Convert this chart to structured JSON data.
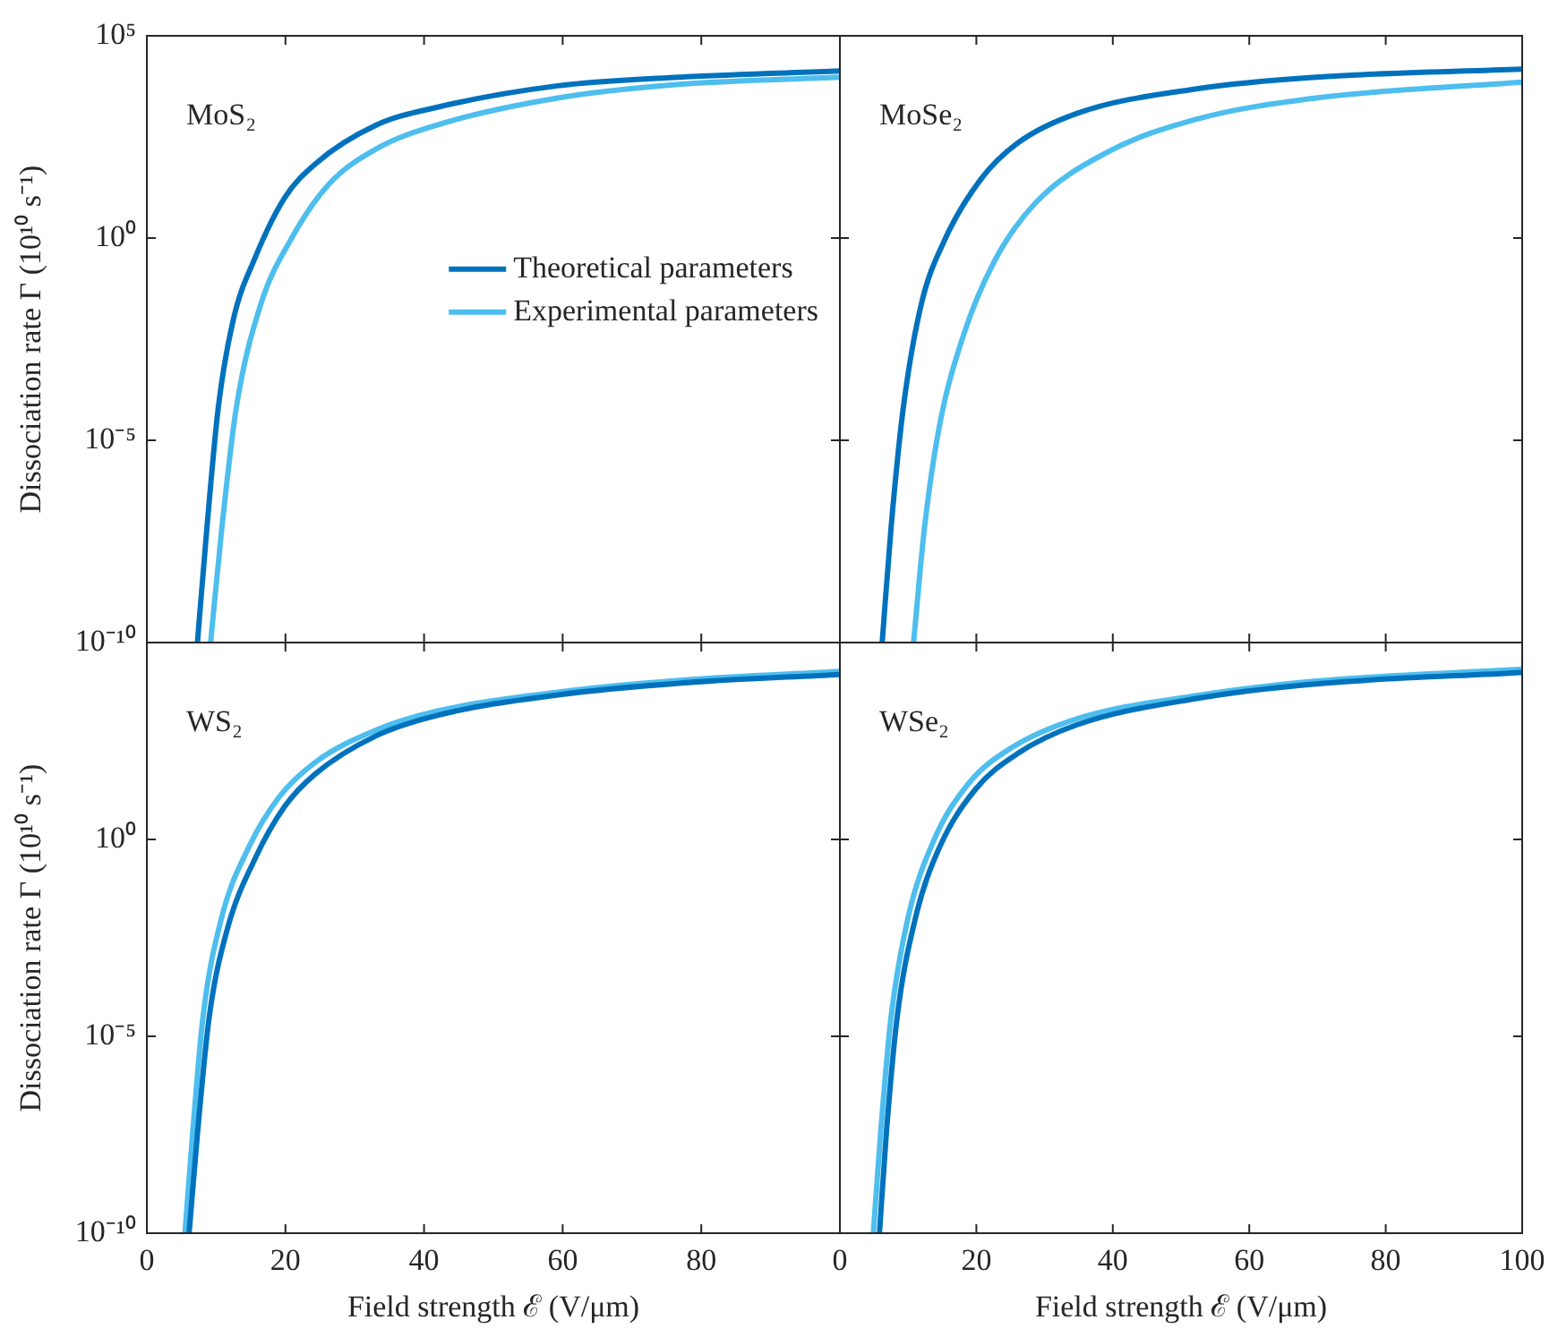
{
  "chart_data": [
    {
      "type": "line",
      "ylabel": "Dissociation rate Γ (10¹⁰ s⁻¹)",
      "annotations": [
        "MoS₂"
      ],
      "log": "y",
      "legend": "right",
      "tick_labels": "y",
      "xlim": [
        0,
        100
      ],
      "xticks": [
        0,
        20,
        40,
        60,
        80,
        100
      ],
      "ylim": [
        1e-10,
        100000
      ],
      "yticks": [
        {
          "value": 1e-10,
          "label": "10⁻¹⁰"
        },
        {
          "value": 1e-05,
          "label": "10⁻⁵"
        },
        {
          "value": 1,
          "label": "10⁰"
        },
        {
          "value": 100000,
          "label": "10⁵"
        }
      ],
      "series": [
        {
          "name": "Theoretical parameters",
          "color": "#0072bd",
          "x": [
            7.3,
            8.6,
            10.3,
            12.5,
            15.6,
            19.9,
            24.3,
            33.1,
            41.8,
            59.3,
            76.8,
            100
          ],
          "values": [
            1e-10,
            5e-08,
            6.3e-05,
            0.01,
            0.32,
            10,
            68,
            620,
            1700,
            5800,
            9500,
            13500
          ]
        },
        {
          "name": "Experimental parameters",
          "color": "#4dbeee",
          "x": [
            9.2,
            10.8,
            12.9,
            16.4,
            20.8,
            26.1,
            33.1,
            41.8,
            59.3,
            76.8,
            100
          ],
          "values": [
            1e-10,
            6.3e-08,
            6.3e-05,
            0.022,
            0.93,
            20,
            160,
            620,
            2900,
            6300,
            9500
          ]
        }
      ]
    },
    {
      "type": "line",
      "annotations": [
        "MoSe₂"
      ],
      "log": "y",
      "tick_labels": false,
      "xlim": [
        0,
        100
      ],
      "xticks": [
        0,
        20,
        40,
        60,
        80,
        100
      ],
      "ylim": [
        1e-10,
        100000
      ],
      "yticks": [
        1e-10,
        1e-05,
        1,
        100000
      ],
      "series": [
        {
          "color": "#0072bd",
          "x": [
            6.2,
            7.5,
            9.3,
            11.9,
            15.4,
            20.7,
            26.0,
            34.7,
            52.3,
            69.8,
            100
          ],
          "values": [
            1e-10,
            6.9e-08,
            6.5e-05,
            0.022,
            0.93,
            29,
            220,
            1200,
            4900,
            9500,
            15000
          ]
        },
        {
          "color": "#4dbeee",
          "x": [
            10.8,
            12.4,
            14.6,
            18.1,
            22.5,
            28.6,
            39.1,
            52.3,
            69.8,
            100
          ],
          "values": [
            1e-10,
            6.9e-08,
            2.3e-05,
            0.0039,
            0.24,
            7.2,
            130,
            870,
            2900,
            7200
          ]
        }
      ]
    },
    {
      "type": "line",
      "xlabel": "Field strength ℰ (V/μm)",
      "ylabel": "Dissociation rate Γ (10¹⁰ s⁻¹)",
      "annotations": [
        "WS₂"
      ],
      "log": "y",
      "xlim": [
        0,
        100
      ],
      "xticks": [
        0,
        20,
        40,
        60,
        80
      ],
      "ylim": [
        1e-10,
        100000
      ],
      "yticks": [
        {
          "value": 1e-10,
          "label": "10⁻¹⁰"
        },
        {
          "value": 1e-05,
          "label": "10⁻⁵"
        },
        {
          "value": 1,
          "label": "10⁰"
        },
        {
          "value": 100000,
          "label": null
        }
      ],
      "series": [
        {
          "color": "#0072bd",
          "x": [
            6.1,
            7.3,
            9.0,
            11.6,
            15.6,
            19.9,
            24.3,
            33.1,
            41.8,
            59.3,
            76.8,
            100
          ],
          "values": [
            1e-10,
            3.3e-08,
            3.1e-05,
            0.0052,
            0.32,
            6.9,
            46,
            430,
            1400,
            4700,
            9300,
            15500
          ]
        },
        {
          "color": "#4dbeee",
          "x": [
            5.5,
            6.6,
            8.1,
            10.8,
            14.7,
            19.1,
            24.3,
            33.1,
            41.8,
            59.3,
            76.8,
            100
          ],
          "values": [
            1e-10,
            3.3e-08,
            3.1e-05,
            0.0105,
            0.63,
            12,
            91,
            600,
            1800,
            5500,
            11000,
            18600
          ]
        }
      ]
    },
    {
      "type": "line",
      "xlabel": "Field strength ℰ (V/μm)",
      "annotations": [
        "WSe₂"
      ],
      "log": "y",
      "tick_labels": "x",
      "xlim": [
        0,
        100
      ],
      "xticks": [
        0,
        20,
        40,
        60,
        80,
        100
      ],
      "ylim": [
        1e-10,
        100000
      ],
      "yticks": [
        1e-10,
        1e-05,
        1,
        100000
      ],
      "series": [
        {
          "color": "#0072bd",
          "x": [
            5.8,
            6.8,
            8.4,
            11.1,
            14.6,
            19.9,
            26.0,
            34.7,
            52.3,
            69.8,
            100
          ],
          "values": [
            1e-10,
            3.3e-08,
            3.1e-05,
            0.0105,
            0.63,
            19,
            150,
            810,
            3800,
            8900,
            17400
          ]
        },
        {
          "color": "#4dbeee",
          "x": [
            4.9,
            5.96,
            7.5,
            10.0,
            13.7,
            18.9,
            25.1,
            34.7,
            52.3,
            69.8,
            100
          ],
          "values": [
            1e-10,
            3.3e-08,
            3.1e-05,
            0.0105,
            0.89,
            27,
            210,
            1150,
            4500,
            10500,
            21000
          ]
        }
      ]
    }
  ]
}
